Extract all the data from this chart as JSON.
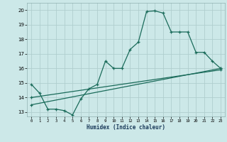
{
  "xlabel": "Humidex (Indice chaleur)",
  "bg_color": "#cce8e8",
  "grid_color": "#b0cece",
  "line_color": "#1a6b5a",
  "xlim": [
    -0.5,
    23.5
  ],
  "ylim": [
    12.7,
    20.5
  ],
  "xticks": [
    0,
    1,
    2,
    3,
    4,
    5,
    6,
    7,
    8,
    9,
    10,
    11,
    12,
    13,
    14,
    15,
    16,
    17,
    18,
    19,
    20,
    21,
    22,
    23
  ],
  "yticks": [
    13,
    14,
    15,
    16,
    17,
    18,
    19,
    20
  ],
  "line1_x": [
    0,
    1,
    2,
    3,
    4,
    5,
    6,
    7,
    8,
    9,
    10,
    11,
    12,
    13,
    14,
    15,
    16,
    17,
    18,
    19,
    20,
    21,
    22,
    23
  ],
  "line1_y": [
    14.9,
    14.3,
    13.2,
    13.2,
    13.1,
    12.8,
    13.9,
    14.6,
    14.9,
    16.5,
    16.0,
    16.0,
    17.3,
    17.8,
    19.9,
    19.95,
    19.8,
    18.5,
    18.5,
    18.5,
    17.1,
    17.1,
    16.5,
    16.0
  ],
  "line2_x": [
    0,
    23
  ],
  "line2_y": [
    13.5,
    16.0
  ],
  "line3_x": [
    0,
    23
  ],
  "line3_y": [
    14.0,
    15.9
  ]
}
